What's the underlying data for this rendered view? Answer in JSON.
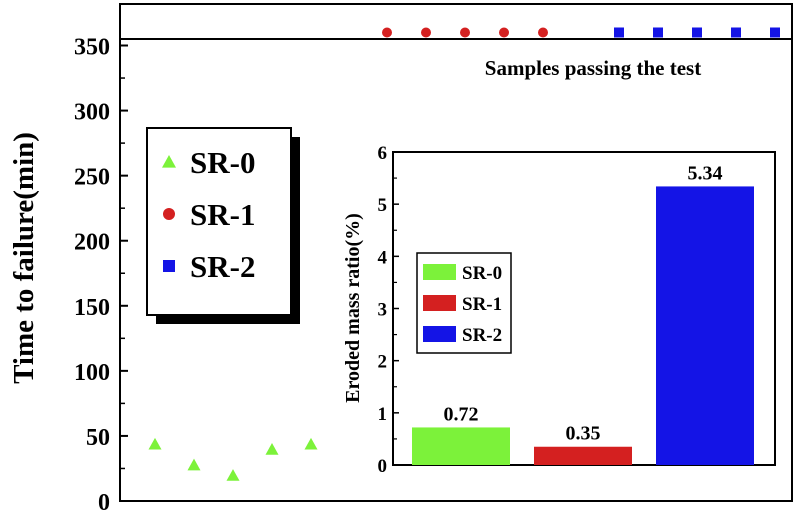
{
  "chart_data": [
    {
      "type": "scatter",
      "ylabel": "Time to failure(min)",
      "ylim": [
        0,
        365
      ],
      "yticks": [
        0,
        50,
        100,
        150,
        200,
        250,
        300,
        350
      ],
      "grid": false,
      "legend_position": "upper-left",
      "threshold": {
        "value": 355,
        "label": "Samples passing the test"
      },
      "series": [
        {
          "name": "SR-0",
          "marker": "triangle",
          "color": "#7cf23a",
          "values": [
            42,
            26,
            18,
            38,
            42
          ]
        },
        {
          "name": "SR-1",
          "marker": "circle",
          "color": "#d42020",
          "values": [
            360,
            360,
            360,
            360,
            360
          ]
        },
        {
          "name": "SR-2",
          "marker": "square",
          "color": "#1414e6",
          "values": [
            360,
            360,
            360,
            360,
            360
          ]
        }
      ]
    },
    {
      "type": "bar",
      "ylabel": "Eroded mass ratio(%)",
      "ylim": [
        0,
        6
      ],
      "yticks": [
        0,
        1,
        2,
        3,
        4,
        5,
        6
      ],
      "legend_position": "left",
      "series": [
        {
          "name": "SR-0",
          "value": 0.72,
          "label": "0.72",
          "color": "#7cf23a"
        },
        {
          "name": "SR-1",
          "value": 0.35,
          "label": "0.35",
          "color": "#d42020"
        },
        {
          "name": "SR-2",
          "value": 5.34,
          "label": "5.34",
          "color": "#1414e6"
        }
      ]
    }
  ]
}
